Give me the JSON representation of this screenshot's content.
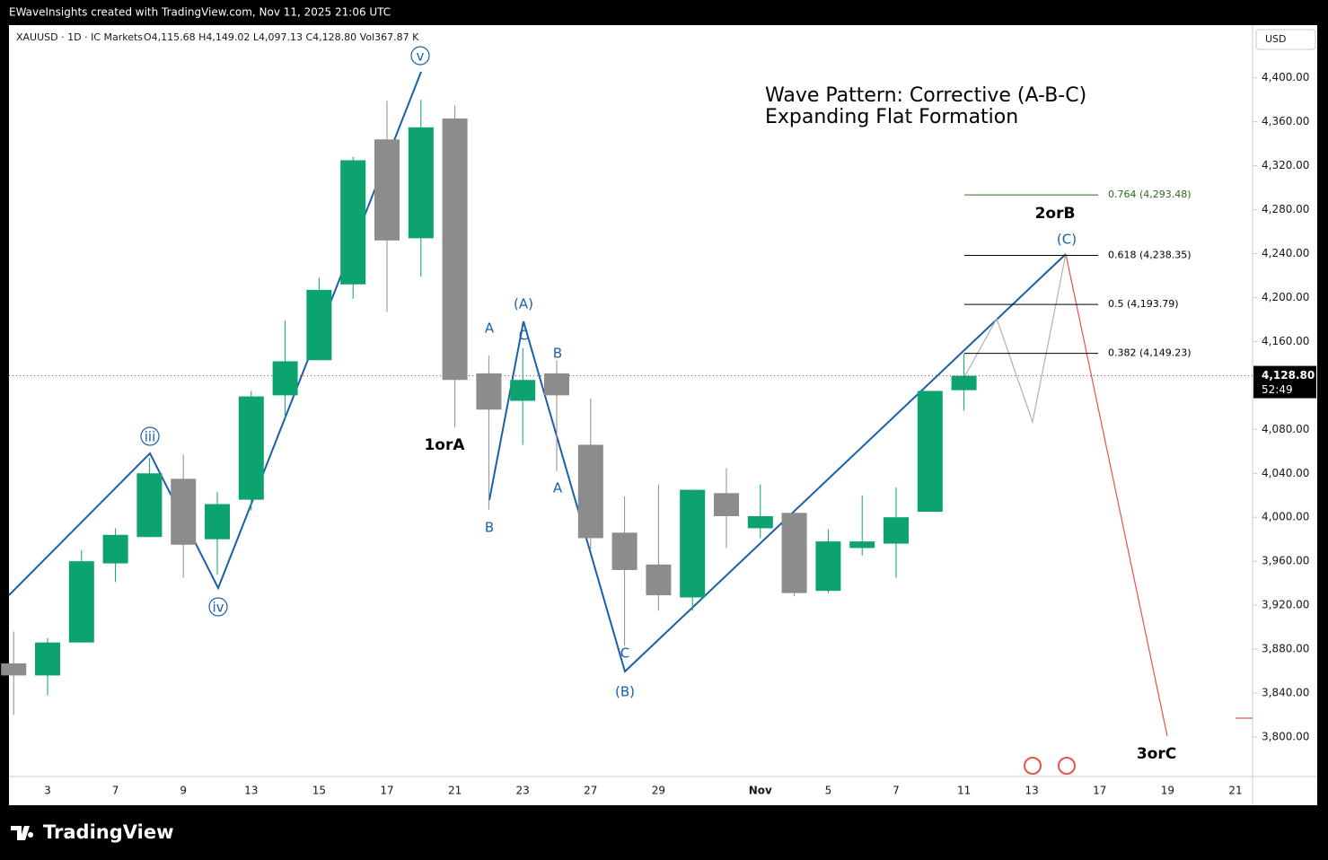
{
  "header": {
    "credit": "EWaveInsights created with TradingView.com, Nov 11, 2025 21:06 UTC"
  },
  "footer": {
    "brand": "TradingView"
  },
  "chart_data": {
    "type": "candlestick",
    "title": "Wave Pattern: Corrective (A-B-C)",
    "subtitle": "Expanding Flat Formation",
    "symbol": "XAUUSD · 1D · IC Markets",
    "ohlc_text": "O4,115.68  H4,149.02  L4,097.13  C4,128.80  Vol367.87 K",
    "currency": "USD",
    "categories": [
      null,
      "3",
      null,
      "7",
      null,
      "9",
      null,
      "13",
      null,
      "15",
      null,
      "17",
      null,
      "21",
      null,
      "23",
      null,
      "27",
      null,
      "29",
      null,
      null,
      "Nov",
      null,
      "5",
      null,
      "7",
      null,
      "11",
      null,
      "13",
      null,
      "17",
      null,
      "19",
      null,
      "21"
    ],
    "open": [
      3867,
      3856,
      3886,
      3958,
      3982,
      4035,
      3980,
      4016,
      4111,
      4143,
      4212,
      4344,
      4254,
      4363,
      4131,
      4106,
      4131,
      4066,
      3986,
      3957,
      3927,
      4022,
      3990,
      4004,
      3933,
      3972,
      3976,
      4005,
      4115.68,
      null,
      null,
      null,
      null,
      null,
      null,
      null,
      null
    ],
    "high": [
      3896,
      3890,
      3970,
      3990,
      4054,
      4057,
      4023,
      4115,
      4179,
      4218,
      4328,
      4379,
      4380,
      4375,
      4147,
      4154,
      4143,
      4108,
      4019,
      4030,
      4025,
      4045,
      4030,
      4004,
      3989,
      4020,
      4027,
      4115,
      4149.02,
      null,
      null,
      null,
      null,
      null,
      null,
      null,
      null
    ],
    "low": [
      3820,
      3838,
      3886,
      3941,
      3982,
      3945,
      3948,
      4006,
      4089,
      4143,
      4199,
      4187,
      4219,
      4082,
      4007,
      4066,
      4042,
      3971,
      3883,
      3915,
      3915,
      3972,
      3981,
      3928,
      3931,
      3965,
      3945,
      4005,
      4097.13,
      null,
      null,
      null,
      null,
      null,
      null,
      null,
      null
    ],
    "close": [
      3856,
      3886,
      3960,
      3984,
      4040,
      3975,
      4012,
      4110,
      4142,
      4207,
      4325,
      4252,
      4355,
      4125,
      4098,
      4125,
      4111,
      3981,
      3952,
      3929,
      4025,
      4001,
      4001,
      3931,
      3978,
      3978,
      4000,
      4115,
      4128.8,
      null,
      null,
      null,
      null,
      null,
      null,
      null,
      null
    ],
    "colors": {
      "up": "#0ca36e",
      "down": "#8c8c8c"
    },
    "ylim": [
      3764,
      4448
    ],
    "yticks": [
      {
        "value": 3800,
        "label": "3,800.00"
      },
      {
        "value": 3840,
        "label": "3,840.00"
      },
      {
        "value": 3880,
        "label": "3,880.00"
      },
      {
        "value": 3920,
        "label": "3,920.00"
      },
      {
        "value": 3960,
        "label": "3,960.00"
      },
      {
        "value": 4000,
        "label": "4,000.00"
      },
      {
        "value": 4040,
        "label": "4,040.00"
      },
      {
        "value": 4080,
        "label": "4,080.00"
      },
      {
        "value": 4120,
        "label": "4,120.00"
      },
      {
        "value": 4160,
        "label": "4,160.00"
      },
      {
        "value": 4200,
        "label": "4,200.00"
      },
      {
        "value": 4240,
        "label": "4,240.00"
      },
      {
        "value": 4280,
        "label": "4,280.00"
      },
      {
        "value": 4320,
        "label": "4,320.00"
      },
      {
        "value": 4360,
        "label": "4,360.00"
      },
      {
        "value": 4400,
        "label": "4,400.00"
      }
    ],
    "grid": false,
    "last_price": {
      "value": 4128.8,
      "label": "4,128.80"
    },
    "countdown": "52:49",
    "fib_levels": [
      {
        "value": 4293.48,
        "label": "0.764 (4,293.48)",
        "color": "#2e6b1f"
      },
      {
        "value": 4238.35,
        "label": "0.618 (4,238.35)",
        "color": "#000000"
      },
      {
        "value": 4193.79,
        "label": "0.5 (4,193.79)",
        "color": "#000000"
      },
      {
        "value": 4149.23,
        "label": "0.382 (4,149.23)",
        "color": "#000000"
      }
    ],
    "annotations": [
      "v",
      "iii",
      "iv",
      "1orA",
      "A",
      "C",
      "(A)",
      "B",
      "B",
      "A",
      "C",
      "(B)",
      "(C)",
      "2orB",
      "3orC"
    ]
  }
}
